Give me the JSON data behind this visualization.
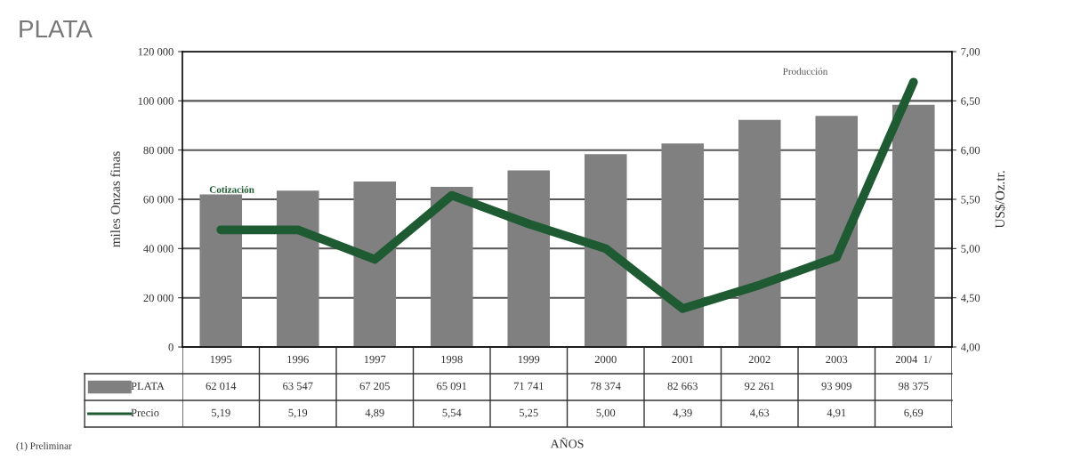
{
  "chart_data": {
    "type": "bar",
    "title": "PLATA",
    "legend": "bottom left",
    "ylabel": "miles Onzas finas",
    "y2label": "US$/Oz.tr.",
    "categories": [
      "1995",
      "1996",
      "1997",
      "1998",
      "1999",
      "2000",
      "2001",
      "2002",
      "2003",
      "2004  1/"
    ],
    "series": [
      {
        "name": "PLATA",
        "color": "#808080",
        "values": [
          62014,
          63547,
          67205,
          65091,
          71741,
          78374,
          82663,
          92261,
          93909,
          98375
        ],
        "value_labels": [
          "62 014",
          "63 547",
          "67 205",
          "65 091",
          "71 741",
          "78 374",
          "82 663",
          "92 261",
          "93 909",
          "98 375"
        ]
      },
      {
        "name": "Precio",
        "type": "line",
        "axis": "y2",
        "color": "#1e5a32",
        "values": [
          5.19,
          5.19,
          4.89,
          5.54,
          5.25,
          5.0,
          4.39,
          4.63,
          4.91,
          6.69
        ],
        "value_labels": [
          "5,19",
          "5,19",
          "4,89",
          "5,54",
          "5,25",
          "5,00",
          "4,39",
          "4,63",
          "4,91",
          "6,69"
        ]
      }
    ],
    "ylim": [
      0,
      120000
    ],
    "yticks": [
      {
        "value": 0,
        "label": "0"
      },
      {
        "value": 20000,
        "label": "20 000"
      },
      {
        "value": 40000,
        "label": "40 000"
      },
      {
        "value": 60000,
        "label": "60 000"
      },
      {
        "value": 80000,
        "label": "80 000"
      },
      {
        "value": 100000,
        "label": "100 000"
      },
      {
        "value": 120000,
        "label": "120 000"
      }
    ],
    "y2lim": [
      4.0,
      7.0
    ],
    "y2ticks": [
      {
        "value": 4.0,
        "label": "4,00"
      },
      {
        "value": 4.5,
        "label": "4,50"
      },
      {
        "value": 5.0,
        "label": "5,00"
      },
      {
        "value": 5.5,
        "label": "5,50"
      },
      {
        "value": 6.0,
        "label": "6,00"
      },
      {
        "value": 6.5,
        "label": "6,50"
      },
      {
        "value": 7.0,
        "label": "7,00"
      }
    ],
    "grid": "y",
    "annotations": [
      "Cotización",
      "Producción",
      "(1) Preliminar",
      "AÑOS"
    ]
  }
}
